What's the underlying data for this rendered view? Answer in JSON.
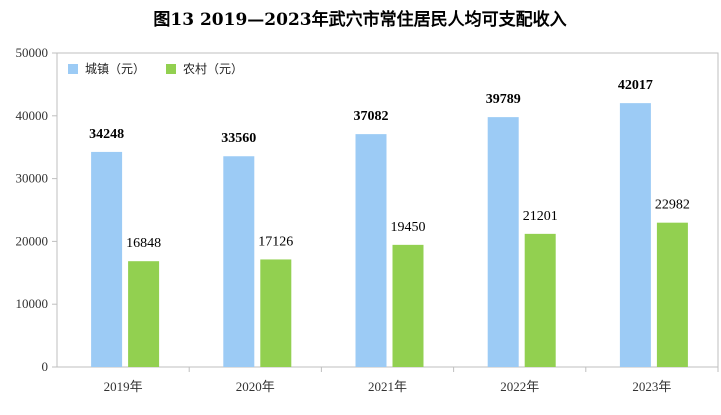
{
  "chart_data": {
    "type": "bar",
    "title": "图13    2019—2023年武穴市常住居民人均可支配收入",
    "categories": [
      "2019年",
      "2020年",
      "2021年",
      "2022年",
      "2023年"
    ],
    "series": [
      {
        "name": "城镇（元）",
        "values": [
          34248,
          33560,
          37082,
          39789,
          42017
        ],
        "color": "#9ccbf5",
        "label_weight": "bold"
      },
      {
        "name": "农村（元）",
        "values": [
          16848,
          17126,
          19450,
          21201,
          22982
        ],
        "color": "#92d050",
        "label_weight": "normal"
      }
    ],
    "xlabel": "",
    "ylabel": "",
    "ylim": [
      0,
      50000
    ],
    "yticks": [
      0,
      10000,
      20000,
      30000,
      40000,
      50000
    ],
    "grid": false,
    "legend_position": "top-left"
  }
}
